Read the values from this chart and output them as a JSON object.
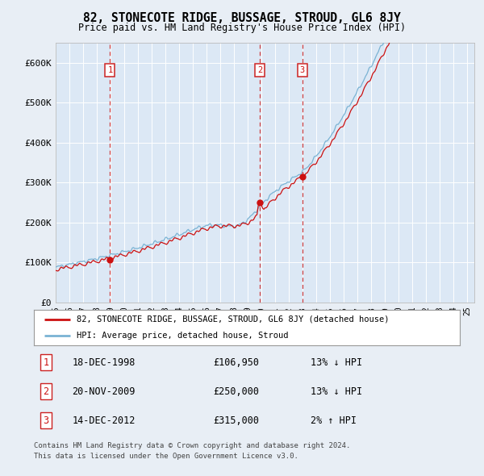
{
  "title": "82, STONECOTE RIDGE, BUSSAGE, STROUD, GL6 8JY",
  "subtitle": "Price paid vs. HM Land Registry's House Price Index (HPI)",
  "bg_color": "#e8eef5",
  "plot_bg_color": "#dce8f5",
  "grid_color": "#ffffff",
  "legend_label_red": "82, STONECOTE RIDGE, BUSSAGE, STROUD, GL6 8JY (detached house)",
  "legend_label_blue": "HPI: Average price, detached house, Stroud",
  "transactions": [
    {
      "num": 1,
      "date": "18-DEC-1998",
      "price": 106950,
      "pct": "13%",
      "dir": "↓",
      "year": 1998.96
    },
    {
      "num": 2,
      "date": "20-NOV-2009",
      "price": 250000,
      "pct": "13%",
      "dir": "↓",
      "year": 2009.88
    },
    {
      "num": 3,
      "date": "14-DEC-2012",
      "price": 315000,
      "pct": "2%",
      "dir": "↑",
      "year": 2012.96
    }
  ],
  "footnote1": "Contains HM Land Registry data © Crown copyright and database right 2024.",
  "footnote2": "This data is licensed under the Open Government Licence v3.0.",
  "ylim": [
    0,
    650000
  ],
  "yticks": [
    0,
    100000,
    200000,
    300000,
    400000,
    500000,
    600000
  ],
  "ytick_labels": [
    "£0",
    "£100K",
    "£200K",
    "£300K",
    "£400K",
    "£500K",
    "£600K"
  ],
  "xlim_start": 1995,
  "xlim_end": 2025.5
}
